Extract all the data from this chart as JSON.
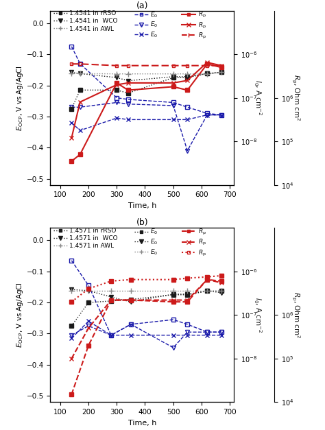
{
  "panel_a": {
    "title": "(a)",
    "steel": "1.4541",
    "t_ecp": [
      140,
      170,
      300,
      340,
      500,
      550,
      620,
      670
    ],
    "ecp_rRSO": [
      -0.275,
      -0.215,
      -0.215,
      -0.225,
      -0.175,
      -0.175,
      -0.162,
      -0.158
    ],
    "ecp_WCO": [
      -0.158,
      -0.162,
      -0.175,
      -0.185,
      -0.172,
      -0.172,
      -0.162,
      -0.158
    ],
    "ecp_AWL": [
      -0.162,
      -0.162,
      -0.163,
      -0.163,
      -0.163,
      -0.163,
      -0.163,
      -0.158
    ],
    "t_e0": [
      140,
      170,
      300,
      340,
      500,
      550,
      620,
      670
    ],
    "e0_rRSO": [
      -0.075,
      -0.13,
      -0.24,
      -0.245,
      -0.255,
      -0.27,
      -0.29,
      -0.295
    ],
    "e0_WCO": [
      -0.27,
      -0.27,
      -0.255,
      -0.26,
      -0.265,
      -0.41,
      -0.295,
      -0.295
    ],
    "e0_AWL": [
      -0.32,
      -0.345,
      -0.305,
      -0.31,
      -0.31,
      -0.31,
      -0.295,
      -0.295
    ],
    "t_rp": [
      140,
      170,
      300,
      340,
      500,
      550,
      620,
      670
    ],
    "rp_rRSO": [
      3.5e-09,
      5e-09,
      2.2e-07,
      1.5e-07,
      1.8e-07,
      1.5e-07,
      6e-07,
      5e-07
    ],
    "rp_WCO": [
      1.2e-08,
      8e-08,
      2e-07,
      2.2e-07,
      2.2e-07,
      2.5e-07,
      6.5e-07,
      5.5e-07
    ],
    "rp_AWL": [
      6e-07,
      6e-07,
      5.5e-07,
      5.5e-07,
      5.5e-07,
      5.5e-07,
      5.5e-07,
      5.5e-07
    ]
  },
  "panel_b": {
    "title": "(b)",
    "steel": "1.4571",
    "t_ecp": [
      140,
      200,
      280,
      350,
      500,
      550,
      620,
      670
    ],
    "ecp_rRSO": [
      -0.275,
      -0.2,
      -0.195,
      -0.19,
      -0.175,
      -0.175,
      -0.163,
      -0.163
    ],
    "ecp_WCO": [
      -0.158,
      -0.162,
      -0.182,
      -0.198,
      -0.173,
      -0.173,
      -0.163,
      -0.168
    ],
    "ecp_AWL": [
      -0.163,
      -0.163,
      -0.163,
      -0.163,
      -0.163,
      -0.163,
      -0.163,
      -0.163
    ],
    "t_e0": [
      140,
      200,
      280,
      350,
      500,
      550,
      620,
      670
    ],
    "e0_rRSO": [
      -0.065,
      -0.145,
      -0.305,
      -0.27,
      -0.255,
      -0.27,
      -0.295,
      -0.295
    ],
    "e0_WCO": [
      -0.305,
      -0.275,
      -0.305,
      -0.27,
      -0.345,
      -0.295,
      -0.295,
      -0.295
    ],
    "e0_AWL": [
      -0.315,
      -0.26,
      -0.305,
      -0.305,
      -0.305,
      -0.305,
      -0.305,
      -0.305
    ],
    "t_rp": [
      140,
      200,
      280,
      350,
      500,
      550,
      620,
      670
    ],
    "rp_rRSO": [
      1.5e-09,
      2e-08,
      2.2e-07,
      2.2e-07,
      2e-07,
      2e-07,
      6.5e-07,
      6e-07
    ],
    "rp_WCO": [
      1e-08,
      5e-08,
      2.2e-07,
      2.2e-07,
      2.2e-07,
      2.2e-07,
      6.5e-07,
      5.5e-07
    ],
    "rp_AWL": [
      2e-07,
      4e-07,
      6e-07,
      6.5e-07,
      6.5e-07,
      7e-07,
      7.5e-07,
      8e-07
    ]
  },
  "black": "#1a1a1a",
  "blue": "#1a1aaa",
  "red": "#cc1a1a",
  "gray": "#888888",
  "xlim": [
    65,
    715
  ],
  "xticks": [
    100,
    200,
    300,
    400,
    500,
    600,
    700
  ],
  "ylim_left": [
    -0.52,
    0.04
  ],
  "yticks_left": [
    0.0,
    -0.1,
    -0.2,
    -0.3,
    -0.4,
    -0.5
  ],
  "xlabel": "Time, h",
  "ylabel_left": "$E_{\\mathrm{OCP}}$, V vs Ag/AgCl"
}
